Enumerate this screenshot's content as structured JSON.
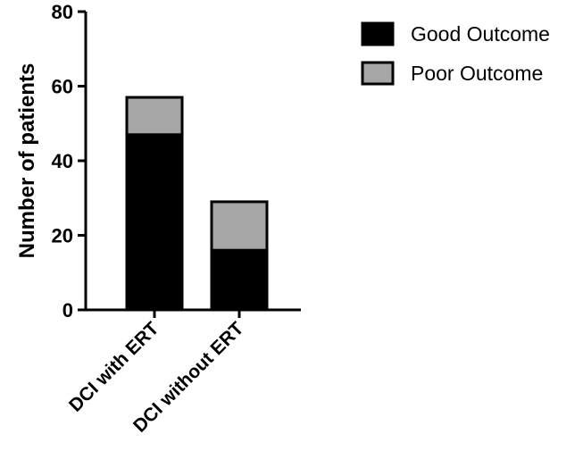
{
  "chart_data": {
    "type": "bar",
    "stacked": true,
    "title": "",
    "xlabel": "",
    "ylabel": "Number of patients",
    "ylim": [
      0,
      80
    ],
    "yticks": [
      0,
      20,
      40,
      60,
      80
    ],
    "categories": [
      "DCI with ERT",
      "DCI without ERT"
    ],
    "series": [
      {
        "name": "Good Outcome",
        "color": "#000000",
        "values": [
          47,
          16
        ]
      },
      {
        "name": "Poor Outcome",
        "color": "#a6a6a6",
        "values": [
          10,
          13
        ]
      }
    ],
    "legend_position": "top-right",
    "grid": false
  }
}
